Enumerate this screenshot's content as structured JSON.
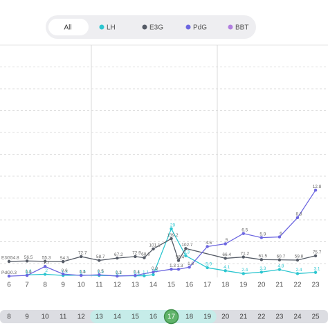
{
  "tabs": [
    "All"
  ],
  "selected_tab": 0,
  "chart_data": {
    "type": "line",
    "xlim": [
      5.5,
      23.69
    ],
    "xticks": [
      6,
      7,
      8,
      9,
      10,
      11,
      12,
      13,
      14,
      15,
      16,
      17,
      18,
      19,
      20,
      21,
      22,
      23
    ],
    "cycle_days": [
      8,
      9,
      10,
      11,
      12,
      13,
      14,
      15,
      16,
      17,
      18,
      19,
      20,
      21,
      22,
      23,
      24,
      25
    ],
    "fertile_window": [
      13,
      19
    ],
    "selected_cycle_day": 17,
    "series": [
      {
        "name": "LH",
        "color": "#2cc6d0",
        "ylim": [
          -4,
          138
        ],
        "x": [
          7,
          8,
          9,
          10,
          11,
          12,
          13,
          13.5,
          14,
          15,
          15.8,
          17,
          18,
          19,
          20,
          21,
          22,
          23
        ],
        "values": [
          1.6,
          2,
          1.3,
          1.5,
          1.3,
          1.1,
          1.1,
          1.1,
          1.8,
          29,
          13,
          5.9,
          4.1,
          2.4,
          3.3,
          4.8,
          2.4,
          3.1
        ]
      },
      {
        "name": "E3G",
        "color": "#555b66",
        "ylim": [
          -30,
          855
        ],
        "name_at_start": true,
        "x": [
          6,
          7,
          8,
          9,
          10,
          11,
          12,
          13,
          13.5,
          14,
          15,
          15.4,
          15.8,
          18,
          19,
          20,
          21,
          22,
          23
        ],
        "values": [
          54.8,
          56.5,
          55.3,
          54.3,
          72.7,
          58.7,
          67.2,
          72.9,
          68.6,
          101.1,
          139.2,
          58.4,
          102.7,
          66.4,
          71.2,
          61.5,
          60.7,
          59.8,
          75.7
        ]
      },
      {
        "name": "PdG",
        "color": "#6c66e0",
        "ylim": [
          -0.9,
          33.9
        ],
        "name_at_start": true,
        "x": [
          6,
          7,
          8,
          9,
          10,
          11,
          12,
          13,
          14,
          15,
          15.4,
          16,
          17,
          18,
          19,
          20,
          21,
          22,
          23
        ],
        "values": [
          0.3,
          0.4,
          1.7,
          0.6,
          0.4,
          0.5,
          0.3,
          0.4,
          0.9,
          1.3,
          1.3,
          1.6,
          4.6,
          5,
          6.5,
          5.9,
          6.0,
          8.8,
          12.8
        ]
      },
      {
        "name": "BBT",
        "color": "#b27fe0",
        "ylim": [
          0,
          1
        ],
        "x": [],
        "values": []
      }
    ]
  }
}
